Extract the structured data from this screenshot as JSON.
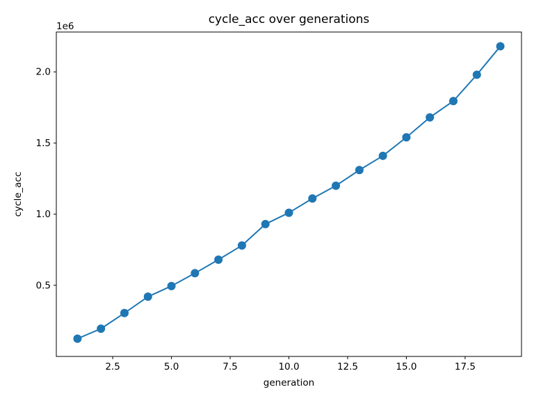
{
  "chart_data": {
    "type": "line",
    "title": "cycle_acc over generations",
    "xlabel": "generation",
    "ylabel": "cycle_acc",
    "y_offset_label": "1e6",
    "x": [
      1,
      2,
      3,
      4,
      5,
      6,
      7,
      8,
      9,
      10,
      11,
      12,
      13,
      14,
      15,
      16,
      17,
      18,
      19
    ],
    "y": [
      125000,
      195000,
      305000,
      420000,
      495000,
      585000,
      680000,
      780000,
      930000,
      1010000,
      1110000,
      1200000,
      1310000,
      1410000,
      1540000,
      1680000,
      1795000,
      1980000,
      2180000
    ],
    "xlim": [
      0.1,
      19.9
    ],
    "ylim": [
      0,
      2280000
    ],
    "xticks": {
      "values": [
        2.5,
        5.0,
        7.5,
        10.0,
        12.5,
        15.0,
        17.5
      ],
      "labels": [
        "2.5",
        "5.0",
        "7.5",
        "10.0",
        "12.5",
        "15.0",
        "17.5"
      ]
    },
    "yticks": {
      "values": [
        500000,
        1000000,
        1500000,
        2000000
      ],
      "labels": [
        "0.5",
        "1.0",
        "1.5",
        "2.0"
      ]
    },
    "line_color": "#1f77b4",
    "marker": "circle",
    "marker_radius": 6,
    "line_width": 2,
    "spine_color": "#000000",
    "grid": false,
    "legend_position": "none"
  }
}
